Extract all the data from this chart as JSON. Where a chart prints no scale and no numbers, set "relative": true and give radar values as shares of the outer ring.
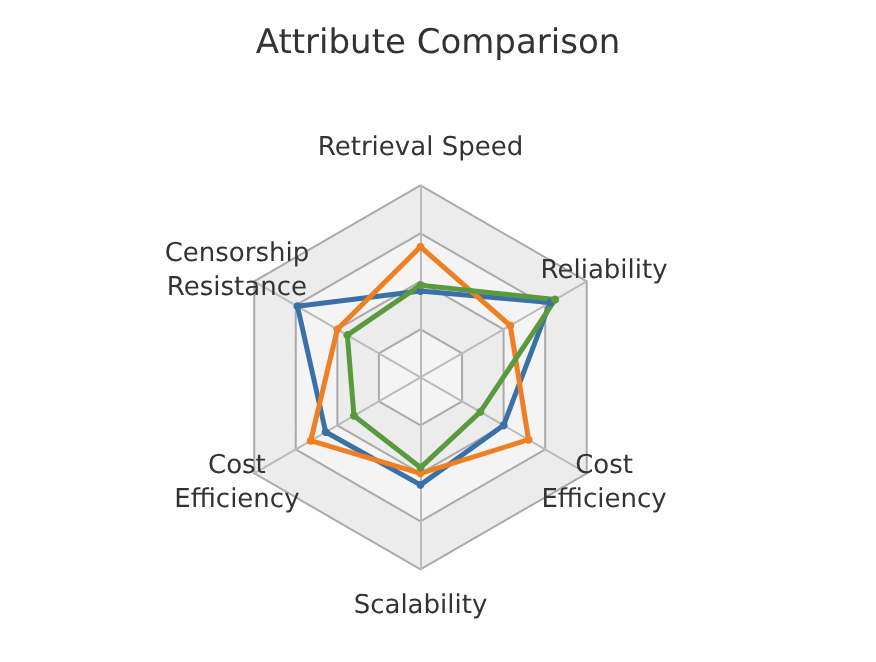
{
  "chart_data": {
    "type": "radar",
    "title": "Attribute Comparison",
    "relative": true,
    "categories": [
      "Retrieval Speed",
      "Reliability",
      "Cost Efficiency",
      "Scalability",
      "Cost Efficiency",
      "Censorship Resistance"
    ],
    "series": [
      {
        "color": "#3a70a8",
        "values": [
          0.45,
          0.78,
          0.5,
          0.56,
          0.57,
          0.74
        ]
      },
      {
        "color": "#f07f24",
        "values": [
          0.68,
          0.54,
          0.65,
          0.5,
          0.66,
          0.5
        ]
      },
      {
        "color": "#5a9a3e",
        "values": [
          0.48,
          0.81,
          0.36,
          0.47,
          0.4,
          0.44
        ]
      }
    ],
    "marker": "circle"
  }
}
